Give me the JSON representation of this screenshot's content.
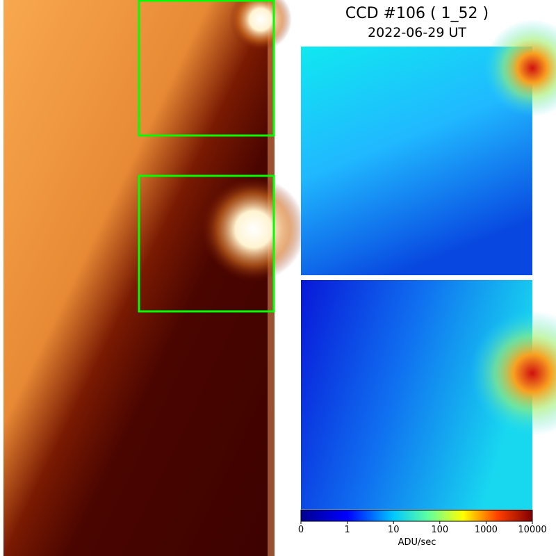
{
  "header": {
    "title": "CCD #106 ( 1_52 )",
    "date": "2022-06-29 UT"
  },
  "colorbar": {
    "ticks": [
      0,
      1,
      10,
      100,
      1000,
      10000
    ],
    "label": "ADU/sec"
  }
}
